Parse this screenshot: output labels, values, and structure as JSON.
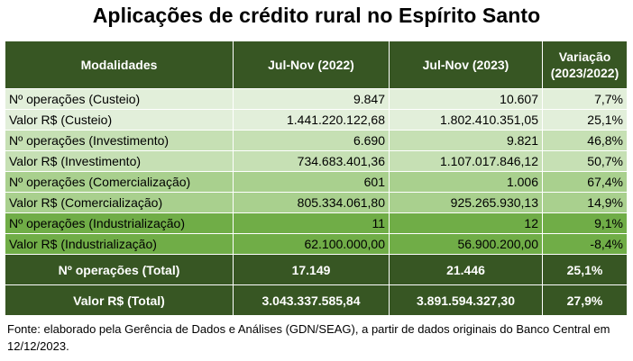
{
  "title": "Aplicações de crédito rural no Espírito Santo",
  "chart_data": {
    "type": "table",
    "columns": [
      "Modalidades",
      "Jul-Nov (2022)",
      "Jul-Nov (2023)",
      "Variação (2023/2022)"
    ],
    "rows": [
      {
        "label": "Nº operações (Custeio)",
        "y2022": "9.847",
        "y2023": "10.607",
        "var": "7,7%"
      },
      {
        "label": "Valor R$ (Custeio)",
        "y2022": "1.441.220.122,68",
        "y2023": "1.802.410.351,05",
        "var": "25,1%"
      },
      {
        "label": "Nº operações (Investimento)",
        "y2022": "6.690",
        "y2023": "9.821",
        "var": "46,8%"
      },
      {
        "label": "Valor R$ (Investimento)",
        "y2022": "734.683.401,36",
        "y2023": "1.107.017.846,12",
        "var": "50,7%"
      },
      {
        "label": "Nº operações (Comercialização)",
        "y2022": "601",
        "y2023": "1.006",
        "var": "67,4%"
      },
      {
        "label": "Valor R$ (Comercialização)",
        "y2022": "805.334.061,80",
        "y2023": "925.265.930,13",
        "var": "14,9%"
      },
      {
        "label": "Nº operações (Industrialização)",
        "y2022": "11",
        "y2023": "12",
        "var": "9,1%"
      },
      {
        "label": "Valor R$ (Industrialização)",
        "y2022": "62.100.000,00",
        "y2023": "56.900.200,00",
        "var": "-8,4%"
      }
    ],
    "totals": [
      {
        "label": "Nº operações (Total)",
        "y2022": "17.149",
        "y2023": "21.446",
        "var": "25,1%"
      },
      {
        "label": "Valor R$ (Total)",
        "y2022": "3.043.337.585,84",
        "y2023": "3.891.594.327,30",
        "var": "27,9%"
      }
    ]
  },
  "header": {
    "col0": "Modalidades",
    "col1": "Jul-Nov (2022)",
    "col2": "Jul-Nov (2023)",
    "col3_line1": "Variação",
    "col3_line2": "(2023/2022)"
  },
  "footnote": "Fonte: elaborado pela Gerência de Dados e Análises (GDN/SEAG), a partir de dados originais do Banco Central em 12/12/2023.",
  "colors": {
    "header": "#375623",
    "shade1": "#e2efda",
    "shade2": "#c6e0b4",
    "shade3": "#a9d08e",
    "shade4": "#70ad47"
  }
}
